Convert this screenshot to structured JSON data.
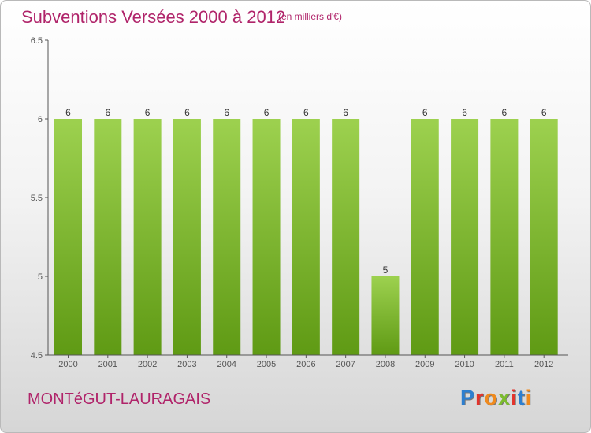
{
  "header": {
    "title": "Subventions Versées 2000 à 2012",
    "unit": "(en milliers d'€)"
  },
  "footer": {
    "place": "MONTéGUT-LAURAGAIS",
    "logo_letters": [
      "P",
      "r",
      "o",
      "x",
      "i",
      "t",
      "i"
    ],
    "logo_colors": [
      "#2d7fd0",
      "#e3332b",
      "#f08a1d",
      "#7cbc2e",
      "#e3332b",
      "#2d7fd0",
      "#f08a1d"
    ]
  },
  "chart_data": {
    "type": "bar",
    "categories": [
      "2000",
      "2001",
      "2002",
      "2003",
      "2004",
      "2005",
      "2006",
      "2007",
      "2008",
      "2009",
      "2010",
      "2011",
      "2012"
    ],
    "values": [
      6,
      6,
      6,
      6,
      6,
      6,
      6,
      6,
      5,
      6,
      6,
      6,
      6
    ],
    "data_labels": [
      "6",
      "6",
      "6",
      "6",
      "6",
      "6",
      "6",
      "6",
      "5",
      "6",
      "6",
      "6",
      "6"
    ],
    "title": "Subventions Versées 2000 à 2012",
    "ylim": [
      4.5,
      6.5
    ],
    "yticks": [
      4.5,
      5,
      5.5,
      6,
      6.5
    ],
    "ytick_labels": [
      "4.5",
      "5",
      "5.5",
      "6",
      "6.5"
    ],
    "grid": false,
    "colors": {
      "bar_top": "#9dd14f",
      "bar_bottom": "#5f9a14",
      "axis": "#555555"
    }
  }
}
